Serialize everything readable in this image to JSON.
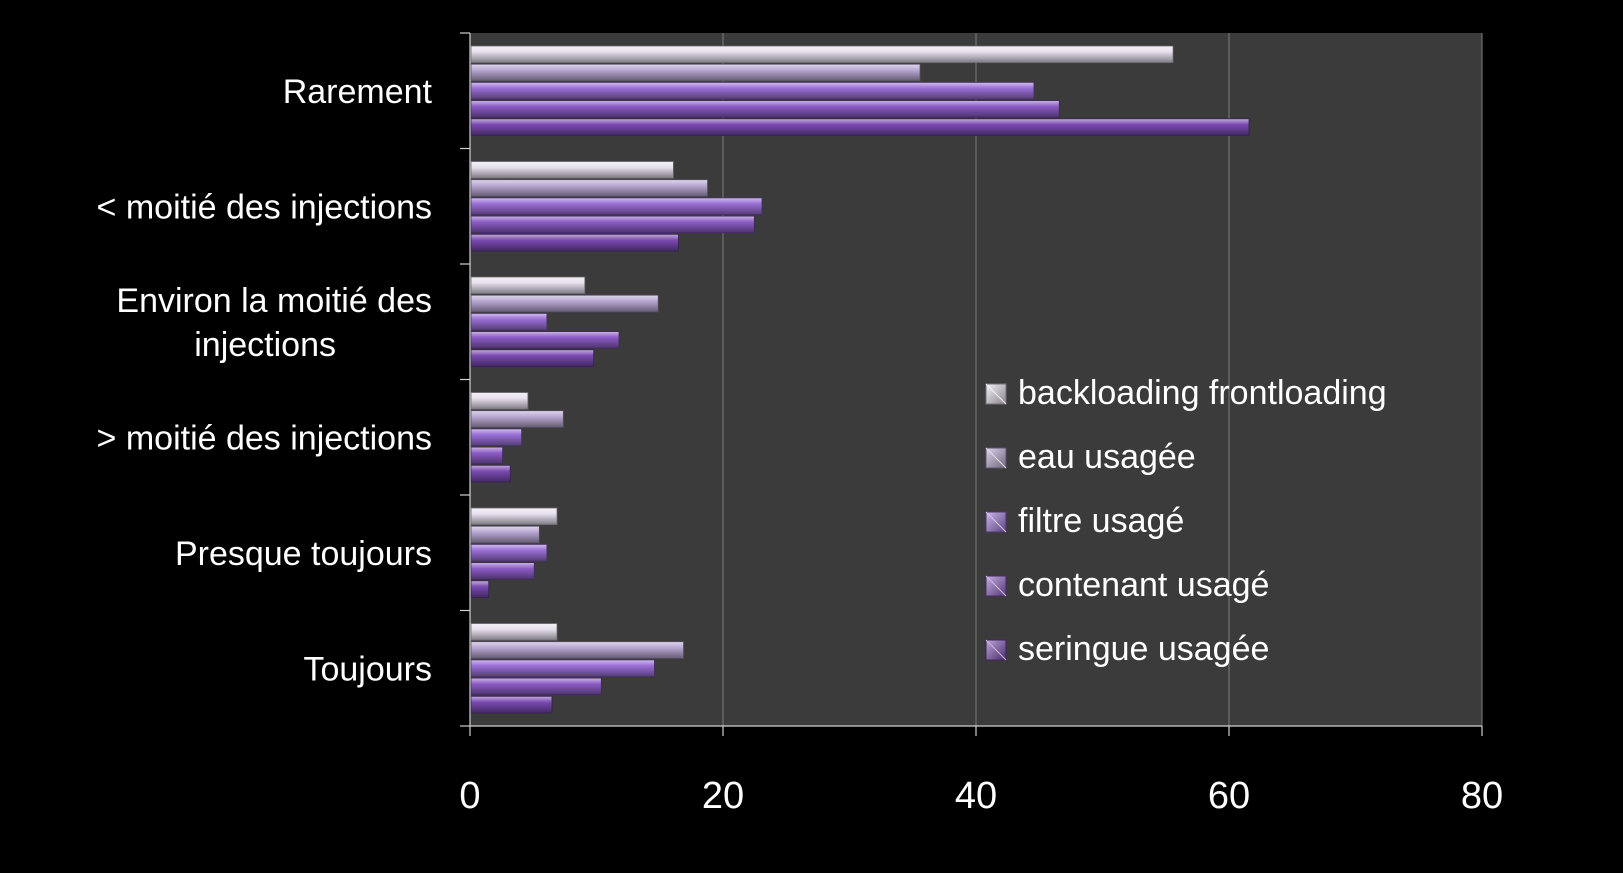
{
  "chart_data": {
    "type": "bar",
    "orientation": "horizontal",
    "title": "",
    "xlabel": "",
    "ylabel": "",
    "xlim": [
      0,
      80
    ],
    "x_ticks": [
      "0",
      "20",
      "40",
      "60",
      "80"
    ],
    "grid": "vertical",
    "legend_position": "right",
    "categories": [
      "Rarement",
      "< moitié des injections",
      "Environ la moitié des injections",
      "> moitié des injections",
      "Presque toujours",
      "Toujours"
    ],
    "series": [
      {
        "name": "backloading frontloading",
        "color": "#e6e0ee",
        "values": [
          55.5,
          16.0,
          9.0,
          4.5,
          6.8,
          6.8
        ]
      },
      {
        "name": "eau usagée",
        "color": "#b9a8d3",
        "values": [
          35.5,
          18.7,
          14.8,
          7.3,
          5.4,
          16.8
        ]
      },
      {
        "name": "filtre usagé",
        "color": "#9a6fd6",
        "values": [
          44.5,
          23.0,
          6.0,
          4.0,
          6.0,
          14.5
        ]
      },
      {
        "name": "contenant usagé",
        "color": "#8c5cc6",
        "values": [
          46.5,
          22.4,
          11.7,
          2.5,
          5.0,
          10.3
        ]
      },
      {
        "name": "seringue usagée",
        "color": "#7a4ab2",
        "values": [
          61.5,
          16.4,
          9.7,
          3.1,
          1.4,
          6.4
        ]
      }
    ]
  }
}
